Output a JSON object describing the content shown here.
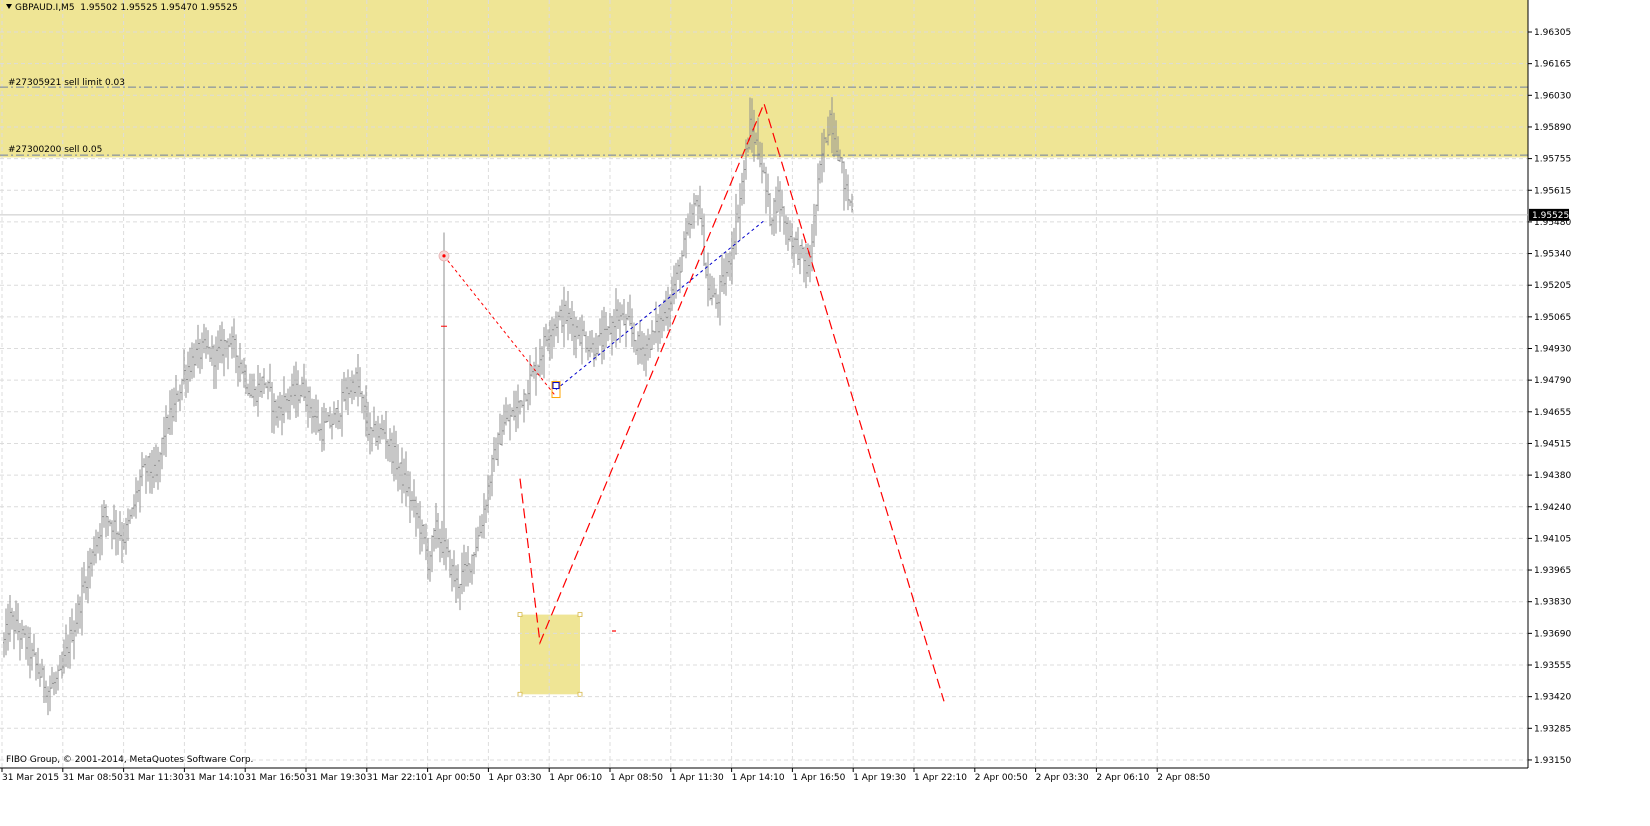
{
  "header": {
    "symbol": "GBPAUD.I,M5",
    "ohlc": "1.95502 1.95525 1.95470 1.95525"
  },
  "footer": {
    "copyright": "FIBO Group, © 2001-2014, MetaQuotes Software Corp."
  },
  "orders": [
    {
      "label": "#27305921 sell limit 0.03",
      "price": 1.9607
    },
    {
      "label": "#27300200 sell 0.05",
      "price": 1.9578
    }
  ],
  "current_price": {
    "label": "1.95525",
    "value": 1.95525
  },
  "colors": {
    "background": "#ffffff",
    "zone": "#efe595",
    "candles": "#8f8f8f",
    "grid": "#dcdcdc",
    "red_line": "#ff0000",
    "blue_line": "#0000cc",
    "order_line": "#7080a0"
  },
  "chart_data": {
    "type": "bar",
    "symbol": "GBPAUD.I",
    "timeframe": "M5",
    "y_ticks": [
      "1.96305",
      "1.96165",
      "1.96030",
      "1.95890",
      "1.95755",
      "1.95615",
      "1.95480",
      "1.95340",
      "1.95205",
      "1.95065",
      "1.94930",
      "1.94790",
      "1.94655",
      "1.94515",
      "1.94380",
      "1.94240",
      "1.94105",
      "1.93965",
      "1.93830",
      "1.93690",
      "1.93555",
      "1.93420",
      "1.93285",
      "1.93150"
    ],
    "x_ticks": [
      "31 Mar 2015",
      "31 Mar 08:50",
      "31 Mar 11:30",
      "31 Mar 14:10",
      "31 Mar 16:50",
      "31 Mar 19:30",
      "31 Mar 22:10",
      "1 Apr 00:50",
      "1 Apr 03:30",
      "1 Apr 06:10",
      "1 Apr 08:50",
      "1 Apr 11:30",
      "1 Apr 14:10",
      "1 Apr 16:50",
      "1 Apr 19:30",
      "1 Apr 22:10",
      "2 Apr 00:50",
      "2 Apr 03:30",
      "2 Apr 06:10",
      "2 Apr 08:50"
    ],
    "ylim": [
      1.9315,
      1.9639
    ],
    "bar_count": 300,
    "price_path": [
      [
        0,
        1.937
      ],
      [
        3,
        1.938
      ],
      [
        7,
        1.9375
      ],
      [
        12,
        1.9368
      ],
      [
        17,
        1.9358
      ],
      [
        22,
        1.935
      ],
      [
        28,
        1.9355
      ],
      [
        33,
        1.9372
      ],
      [
        36,
        1.938
      ],
      [
        40,
        1.9395
      ],
      [
        45,
        1.941
      ],
      [
        50,
        1.9425
      ],
      [
        55,
        1.942
      ],
      [
        60,
        1.9415
      ],
      [
        64,
        1.9425
      ],
      [
        68,
        1.944
      ],
      [
        72,
        1.9445
      ],
      [
        76,
        1.944
      ],
      [
        80,
        1.946
      ],
      [
        85,
        1.947
      ],
      [
        90,
        1.9485
      ],
      [
        95,
        1.9492
      ],
      [
        100,
        1.9495
      ],
      [
        106,
        1.9492
      ],
      [
        112,
        1.95
      ],
      [
        118,
        1.949
      ],
      [
        124,
        1.9475
      ],
      [
        130,
        1.9482
      ],
      [
        136,
        1.9468
      ],
      [
        142,
        1.9475
      ],
      [
        150,
        1.9478
      ],
      [
        158,
        1.946
      ],
      [
        165,
        1.9465
      ],
      [
        172,
        1.9478
      ],
      [
        176,
        1.9482
      ],
      [
        183,
        1.9458
      ],
      [
        190,
        1.946
      ],
      [
        197,
        1.9445
      ],
      [
        203,
        1.9432
      ],
      [
        208,
        1.942
      ],
      [
        212,
        1.9405
      ],
      [
        216,
        1.9418
      ],
      [
        221,
        1.9408
      ],
      [
        226,
        1.9395
      ],
      [
        232,
        1.9402
      ],
      [
        238,
        1.9418
      ],
      [
        244,
        1.9445
      ],
      [
        249,
        1.9462
      ],
      [
        255,
        1.9468
      ],
      [
        261,
        1.9478
      ],
      [
        267,
        1.949
      ],
      [
        273,
        1.9505
      ],
      [
        280,
        1.951
      ],
      [
        287,
        1.9503
      ],
      [
        294,
        1.9496
      ],
      [
        301,
        1.95
      ],
      [
        306,
        1.951
      ],
      [
        312,
        1.9505
      ],
      [
        318,
        1.9495
      ],
      [
        324,
        1.95
      ],
      [
        330,
        1.951
      ],
      [
        336,
        1.9525
      ],
      [
        342,
        1.9545
      ],
      [
        347,
        1.956
      ],
      [
        352,
        1.952
      ],
      [
        356,
        1.9515
      ],
      [
        362,
        1.953
      ],
      [
        368,
        1.956
      ],
      [
        373,
        1.959
      ],
      [
        378,
        1.9578
      ],
      [
        383,
        1.9552
      ],
      [
        387,
        1.956
      ],
      [
        392,
        1.9545
      ],
      [
        397,
        1.9538
      ],
      [
        402,
        1.9528
      ],
      [
        405,
        1.955
      ],
      [
        409,
        1.9578
      ],
      [
        413,
        1.9595
      ],
      [
        417,
        1.958
      ],
      [
        421,
        1.9562
      ],
      [
        424,
        1.9555
      ]
    ],
    "annotations": {
      "zones": [
        {
          "from_price": 1.9639,
          "to_price": 1.9577
        },
        {
          "from_price": 1.9382,
          "to_price": 1.9348,
          "from_bar": 258,
          "to_bar": 288
        }
      ],
      "red_zigzag": [
        [
          258,
          1.944
        ],
        [
          268,
          1.937
        ],
        [
          380,
          1.96
        ],
        [
          470,
          1.9345
        ]
      ],
      "red_dotted": [
        [
          220,
          1.9535
        ],
        [
          276,
          1.9475
        ]
      ],
      "blue_dotted": [
        [
          276,
          1.9478
        ],
        [
          380,
          1.955
        ]
      ]
    }
  }
}
